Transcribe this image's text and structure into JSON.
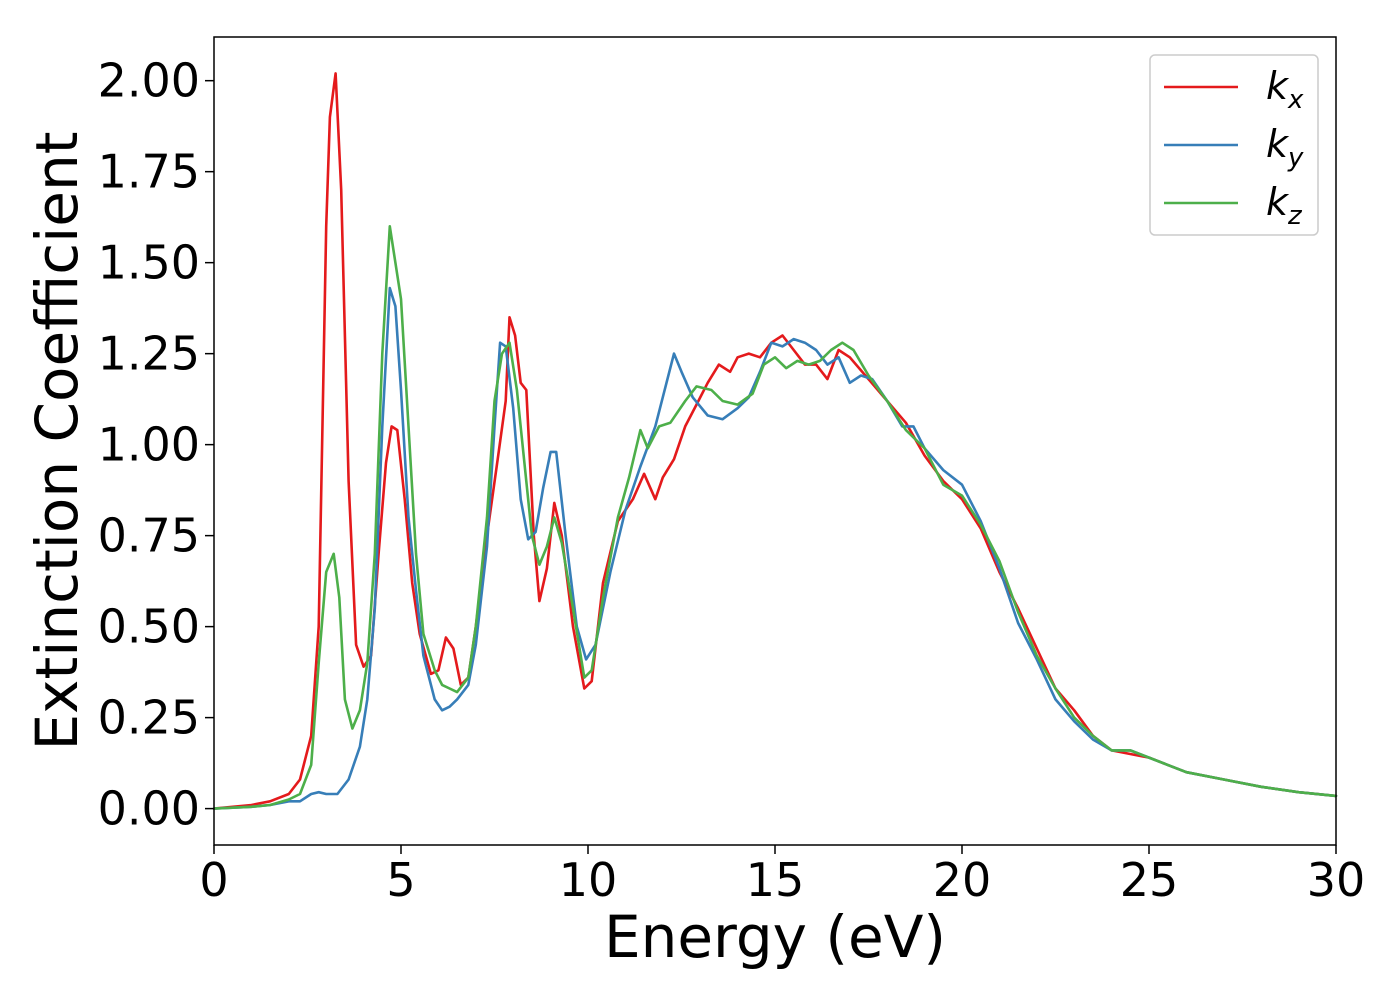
{
  "chart_data": {
    "type": "line",
    "xlabel": "Energy (eV)",
    "ylabel": "Extinction Coefficient",
    "xlim": [
      0,
      30
    ],
    "ylim": [
      -0.1,
      2.12
    ],
    "xticks": [
      0,
      5,
      10,
      15,
      20,
      25,
      30
    ],
    "xtick_labels": [
      "0",
      "5",
      "10",
      "15",
      "20",
      "25",
      "30"
    ],
    "yticks": [
      0.0,
      0.25,
      0.5,
      0.75,
      1.0,
      1.25,
      1.5,
      1.75,
      2.0
    ],
    "ytick_labels": [
      "0.00",
      "0.25",
      "0.50",
      "0.75",
      "1.00",
      "1.25",
      "1.50",
      "1.75",
      "2.00"
    ],
    "grid": false,
    "legend_position": "top-right",
    "series": [
      {
        "name": "k",
        "subscript": "x",
        "color": "#e41a1c",
        "points": [
          [
            0,
            0.0
          ],
          [
            1,
            0.01
          ],
          [
            1.5,
            0.02
          ],
          [
            2,
            0.04
          ],
          [
            2.3,
            0.08
          ],
          [
            2.6,
            0.2
          ],
          [
            2.8,
            0.5
          ],
          [
            3.0,
            1.6
          ],
          [
            3.1,
            1.9
          ],
          [
            3.25,
            2.02
          ],
          [
            3.4,
            1.7
          ],
          [
            3.6,
            0.9
          ],
          [
            3.8,
            0.45
          ],
          [
            4.0,
            0.39
          ],
          [
            4.2,
            0.42
          ],
          [
            4.4,
            0.7
          ],
          [
            4.6,
            0.95
          ],
          [
            4.75,
            1.05
          ],
          [
            4.9,
            1.04
          ],
          [
            5.1,
            0.85
          ],
          [
            5.3,
            0.62
          ],
          [
            5.5,
            0.48
          ],
          [
            5.8,
            0.37
          ],
          [
            6.0,
            0.38
          ],
          [
            6.2,
            0.47
          ],
          [
            6.4,
            0.44
          ],
          [
            6.6,
            0.34
          ],
          [
            6.8,
            0.36
          ],
          [
            7.0,
            0.5
          ],
          [
            7.3,
            0.75
          ],
          [
            7.6,
            0.97
          ],
          [
            7.8,
            1.12
          ],
          [
            7.9,
            1.35
          ],
          [
            8.05,
            1.3
          ],
          [
            8.2,
            1.17
          ],
          [
            8.35,
            1.15
          ],
          [
            8.55,
            0.75
          ],
          [
            8.7,
            0.57
          ],
          [
            8.9,
            0.66
          ],
          [
            9.1,
            0.84
          ],
          [
            9.3,
            0.75
          ],
          [
            9.6,
            0.5
          ],
          [
            9.9,
            0.33
          ],
          [
            10.1,
            0.35
          ],
          [
            10.4,
            0.62
          ],
          [
            10.8,
            0.79
          ],
          [
            11.2,
            0.85
          ],
          [
            11.5,
            0.92
          ],
          [
            11.8,
            0.85
          ],
          [
            12.0,
            0.91
          ],
          [
            12.3,
            0.96
          ],
          [
            12.6,
            1.05
          ],
          [
            12.9,
            1.11
          ],
          [
            13.2,
            1.17
          ],
          [
            13.5,
            1.22
          ],
          [
            13.8,
            1.2
          ],
          [
            14.0,
            1.24
          ],
          [
            14.3,
            1.25
          ],
          [
            14.6,
            1.24
          ],
          [
            14.9,
            1.28
          ],
          [
            15.2,
            1.3
          ],
          [
            15.5,
            1.26
          ],
          [
            15.8,
            1.22
          ],
          [
            16.1,
            1.22
          ],
          [
            16.4,
            1.18
          ],
          [
            16.7,
            1.26
          ],
          [
            17.0,
            1.24
          ],
          [
            17.5,
            1.18
          ],
          [
            18.0,
            1.12
          ],
          [
            18.5,
            1.06
          ],
          [
            19.0,
            0.97
          ],
          [
            19.5,
            0.9
          ],
          [
            20.0,
            0.85
          ],
          [
            20.5,
            0.77
          ],
          [
            21.0,
            0.65
          ],
          [
            21.5,
            0.55
          ],
          [
            22.0,
            0.44
          ],
          [
            22.5,
            0.33
          ],
          [
            23.0,
            0.27
          ],
          [
            23.5,
            0.2
          ],
          [
            24.0,
            0.16
          ],
          [
            24.5,
            0.15
          ],
          [
            25.0,
            0.14
          ],
          [
            25.5,
            0.12
          ],
          [
            26.0,
            0.1
          ],
          [
            27.0,
            0.08
          ],
          [
            28.0,
            0.06
          ],
          [
            29.0,
            0.045
          ],
          [
            30.0,
            0.035
          ]
        ]
      },
      {
        "name": "k",
        "subscript": "y",
        "color": "#377eb8",
        "points": [
          [
            0,
            0.0
          ],
          [
            1,
            0.005
          ],
          [
            1.5,
            0.01
          ],
          [
            2,
            0.02
          ],
          [
            2.3,
            0.02
          ],
          [
            2.6,
            0.04
          ],
          [
            2.8,
            0.045
          ],
          [
            3.0,
            0.04
          ],
          [
            3.3,
            0.04
          ],
          [
            3.6,
            0.08
          ],
          [
            3.9,
            0.17
          ],
          [
            4.1,
            0.3
          ],
          [
            4.3,
            0.55
          ],
          [
            4.5,
            1.05
          ],
          [
            4.7,
            1.43
          ],
          [
            4.85,
            1.38
          ],
          [
            5.0,
            1.15
          ],
          [
            5.2,
            0.8
          ],
          [
            5.4,
            0.6
          ],
          [
            5.6,
            0.42
          ],
          [
            5.9,
            0.3
          ],
          [
            6.1,
            0.27
          ],
          [
            6.3,
            0.28
          ],
          [
            6.5,
            0.3
          ],
          [
            6.8,
            0.34
          ],
          [
            7.0,
            0.45
          ],
          [
            7.3,
            0.72
          ],
          [
            7.5,
            1.05
          ],
          [
            7.65,
            1.28
          ],
          [
            7.8,
            1.27
          ],
          [
            8.0,
            1.1
          ],
          [
            8.2,
            0.85
          ],
          [
            8.4,
            0.74
          ],
          [
            8.6,
            0.76
          ],
          [
            8.8,
            0.88
          ],
          [
            9.0,
            0.98
          ],
          [
            9.15,
            0.98
          ],
          [
            9.4,
            0.75
          ],
          [
            9.7,
            0.5
          ],
          [
            9.95,
            0.41
          ],
          [
            10.2,
            0.45
          ],
          [
            10.6,
            0.65
          ],
          [
            11.0,
            0.82
          ],
          [
            11.4,
            0.94
          ],
          [
            11.8,
            1.05
          ],
          [
            12.1,
            1.17
          ],
          [
            12.3,
            1.25
          ],
          [
            12.5,
            1.2
          ],
          [
            12.8,
            1.13
          ],
          [
            13.2,
            1.08
          ],
          [
            13.6,
            1.07
          ],
          [
            14.0,
            1.1
          ],
          [
            14.3,
            1.13
          ],
          [
            14.6,
            1.2
          ],
          [
            14.9,
            1.28
          ],
          [
            15.2,
            1.27
          ],
          [
            15.5,
            1.29
          ],
          [
            15.8,
            1.28
          ],
          [
            16.1,
            1.26
          ],
          [
            16.4,
            1.22
          ],
          [
            16.7,
            1.24
          ],
          [
            17.0,
            1.17
          ],
          [
            17.3,
            1.19
          ],
          [
            17.6,
            1.18
          ],
          [
            18.0,
            1.12
          ],
          [
            18.4,
            1.05
          ],
          [
            18.7,
            1.05
          ],
          [
            19.0,
            0.99
          ],
          [
            19.5,
            0.93
          ],
          [
            20.0,
            0.89
          ],
          [
            20.5,
            0.79
          ],
          [
            21.0,
            0.66
          ],
          [
            21.5,
            0.51
          ],
          [
            22.0,
            0.41
          ],
          [
            22.5,
            0.3
          ],
          [
            23.0,
            0.24
          ],
          [
            23.5,
            0.19
          ],
          [
            24.0,
            0.16
          ],
          [
            24.5,
            0.16
          ],
          [
            25.0,
            0.14
          ],
          [
            25.5,
            0.12
          ],
          [
            26.0,
            0.1
          ],
          [
            27.0,
            0.08
          ],
          [
            28.0,
            0.06
          ],
          [
            29.0,
            0.045
          ],
          [
            30.0,
            0.035
          ]
        ]
      },
      {
        "name": "k",
        "subscript": "z",
        "color": "#4daf4a",
        "points": [
          [
            0,
            0.0
          ],
          [
            1,
            0.005
          ],
          [
            1.5,
            0.01
          ],
          [
            2,
            0.025
          ],
          [
            2.3,
            0.04
          ],
          [
            2.6,
            0.12
          ],
          [
            2.8,
            0.4
          ],
          [
            3.0,
            0.65
          ],
          [
            3.2,
            0.7
          ],
          [
            3.35,
            0.58
          ],
          [
            3.5,
            0.3
          ],
          [
            3.7,
            0.22
          ],
          [
            3.9,
            0.27
          ],
          [
            4.1,
            0.4
          ],
          [
            4.3,
            0.7
          ],
          [
            4.5,
            1.25
          ],
          [
            4.7,
            1.6
          ],
          [
            4.85,
            1.5
          ],
          [
            5.0,
            1.4
          ],
          [
            5.2,
            1.05
          ],
          [
            5.4,
            0.7
          ],
          [
            5.6,
            0.48
          ],
          [
            5.9,
            0.38
          ],
          [
            6.1,
            0.34
          ],
          [
            6.3,
            0.33
          ],
          [
            6.5,
            0.32
          ],
          [
            6.8,
            0.36
          ],
          [
            7.0,
            0.5
          ],
          [
            7.3,
            0.8
          ],
          [
            7.5,
            1.12
          ],
          [
            7.7,
            1.25
          ],
          [
            7.9,
            1.28
          ],
          [
            8.1,
            1.15
          ],
          [
            8.3,
            0.95
          ],
          [
            8.5,
            0.75
          ],
          [
            8.7,
            0.67
          ],
          [
            8.9,
            0.72
          ],
          [
            9.1,
            0.8
          ],
          [
            9.3,
            0.73
          ],
          [
            9.6,
            0.55
          ],
          [
            9.9,
            0.36
          ],
          [
            10.1,
            0.38
          ],
          [
            10.4,
            0.58
          ],
          [
            10.8,
            0.8
          ],
          [
            11.1,
            0.91
          ],
          [
            11.4,
            1.04
          ],
          [
            11.6,
            0.99
          ],
          [
            11.9,
            1.05
          ],
          [
            12.2,
            1.06
          ],
          [
            12.6,
            1.12
          ],
          [
            12.9,
            1.16
          ],
          [
            13.3,
            1.15
          ],
          [
            13.6,
            1.12
          ],
          [
            14.0,
            1.11
          ],
          [
            14.4,
            1.14
          ],
          [
            14.7,
            1.22
          ],
          [
            15.0,
            1.24
          ],
          [
            15.3,
            1.21
          ],
          [
            15.6,
            1.23
          ],
          [
            15.9,
            1.22
          ],
          [
            16.2,
            1.23
          ],
          [
            16.5,
            1.26
          ],
          [
            16.8,
            1.28
          ],
          [
            17.1,
            1.26
          ],
          [
            17.5,
            1.19
          ],
          [
            18.0,
            1.12
          ],
          [
            18.5,
            1.04
          ],
          [
            19.0,
            0.99
          ],
          [
            19.5,
            0.89
          ],
          [
            20.0,
            0.86
          ],
          [
            20.5,
            0.78
          ],
          [
            21.0,
            0.68
          ],
          [
            21.5,
            0.54
          ],
          [
            22.0,
            0.42
          ],
          [
            22.5,
            0.33
          ],
          [
            23.0,
            0.25
          ],
          [
            23.5,
            0.2
          ],
          [
            24.0,
            0.16
          ],
          [
            24.5,
            0.16
          ],
          [
            25.0,
            0.14
          ],
          [
            25.5,
            0.12
          ],
          [
            26.0,
            0.1
          ],
          [
            27.0,
            0.08
          ],
          [
            28.0,
            0.06
          ],
          [
            29.0,
            0.045
          ],
          [
            30.0,
            0.035
          ]
        ]
      }
    ]
  }
}
